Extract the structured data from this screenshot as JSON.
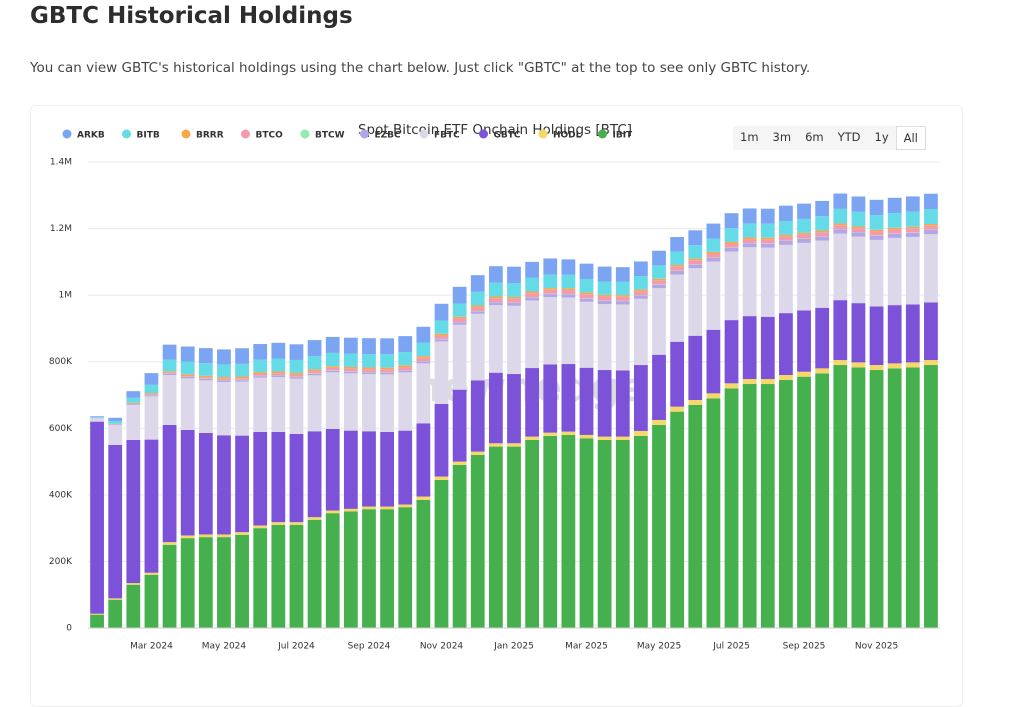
{
  "header": {
    "title": "GBTC Historical Holdings",
    "description": "You can view GBTC's historical holdings using the chart below. Just click \"GBTC\" at the top to see only GBTC history."
  },
  "range_buttons": [
    "1m",
    "3m",
    "6m",
    "YTD",
    "1y",
    "All"
  ],
  "chart_data": {
    "type": "bar",
    "stacked": true,
    "title": "Spot Bitcoin ETF Onchain Holdings [BTC]",
    "watermark": "newhedge",
    "categories": [
      null,
      null,
      null,
      "Mar 2024",
      null,
      null,
      null,
      "May 2024",
      null,
      null,
      null,
      "Jul 2024",
      null,
      null,
      null,
      "Sep 2024",
      null,
      null,
      null,
      "Nov 2024",
      null,
      null,
      null,
      "Jan 2025",
      null,
      null,
      null,
      "Mar 2025",
      null,
      null,
      null,
      "May 2025",
      null,
      null,
      null,
      "Jul 2025",
      null,
      null,
      null,
      "Sep 2025",
      null,
      null,
      null,
      "Nov 2025",
      null,
      null,
      null
    ],
    "series": [
      {
        "name": "ARKB",
        "color": "#7ba4f2",
        "values": [
          3000,
          10000,
          20000,
          35000,
          45000,
          45000,
          45000,
          45000,
          47000,
          47000,
          47000,
          47000,
          48000,
          48000,
          48000,
          48000,
          48000,
          48000,
          48000,
          50000,
          50000,
          50000,
          50000,
          50000,
          48000,
          48000,
          46000,
          46000,
          45000,
          44000,
          44000,
          44000,
          44000,
          45000,
          45000,
          45000,
          45000,
          45000,
          46000,
          46000,
          46000,
          46000,
          46000,
          46000,
          46000,
          46000,
          46000
        ]
      },
      {
        "name": "BITB",
        "color": "#66dbe8",
        "values": [
          2000,
          8000,
          15000,
          25000,
          35000,
          38000,
          38000,
          38000,
          38000,
          38000,
          39000,
          39000,
          40000,
          40000,
          40000,
          40000,
          40000,
          40000,
          40000,
          40000,
          40000,
          41000,
          41000,
          41000,
          41000,
          41000,
          41000,
          41000,
          40000,
          40000,
          40000,
          40000,
          40000,
          40000,
          40000,
          41000,
          42000,
          42000,
          42000,
          42000,
          43000,
          44000,
          44000,
          44000,
          44000,
          45000,
          45000
        ]
      },
      {
        "name": "BRRR",
        "color": "#f5a94a",
        "values": [
          300,
          1000,
          2000,
          3000,
          3500,
          4000,
          4500,
          5000,
          5000,
          5000,
          5000,
          5000,
          5000,
          5000,
          5000,
          5000,
          5000,
          5000,
          5000,
          5000,
          5000,
          5000,
          5000,
          5000,
          5000,
          5000,
          5000,
          5000,
          5000,
          5000,
          5000,
          5000,
          5000,
          5000,
          5000,
          5000,
          5000,
          5000,
          5000,
          5000,
          5000,
          5000,
          5000,
          5000,
          5000,
          5000,
          5000
        ]
      },
      {
        "name": "BTCO",
        "color": "#f59aae",
        "values": [
          200,
          800,
          1500,
          2500,
          3000,
          3500,
          4000,
          4500,
          5000,
          5500,
          6000,
          6500,
          7000,
          7500,
          8000,
          8500,
          9000,
          9500,
          10000,
          10500,
          11000,
          11500,
          12000,
          12000,
          12000,
          12000,
          12000,
          12000,
          12000,
          12000,
          12000,
          12000,
          12000,
          12000,
          12000,
          12000,
          12000,
          12000,
          12000,
          12000,
          12000,
          12000,
          12000,
          12000,
          12000,
          12000,
          12000
        ]
      },
      {
        "name": "BTCW",
        "color": "#95eab0",
        "values": [
          100,
          300,
          500,
          700,
          800,
          900,
          1000,
          1000,
          1000,
          1000,
          1000,
          1000,
          1000,
          1000,
          1000,
          1000,
          1000,
          1000,
          1000,
          1000,
          1000,
          1000,
          1000,
          1000,
          1000,
          1000,
          1000,
          1000,
          1000,
          1000,
          1000,
          1000,
          1000,
          1000,
          1000,
          1000,
          1000,
          1000,
          1000,
          1000,
          1000,
          1000,
          1000,
          1000,
          1000,
          1000,
          1000
        ]
      },
      {
        "name": "EZBC",
        "color": "#b3a6e6",
        "values": [
          500,
          1500,
          2500,
          3500,
          4000,
          4200,
          4300,
          4400,
          4500,
          4600,
          4700,
          4800,
          4900,
          5000,
          5100,
          5200,
          5300,
          5500,
          6000,
          6500,
          7000,
          7500,
          8000,
          8500,
          9000,
          9200,
          9400,
          9600,
          9800,
          10000,
          10200,
          10400,
          10600,
          10800,
          11000,
          11200,
          11400,
          11600,
          11800,
          12000,
          12100,
          12200,
          12300,
          12400,
          12500,
          12600,
          12700
        ]
      },
      {
        "name": "FBTC",
        "color": "#dcd8ea",
        "values": [
          10000,
          60000,
          105000,
          130000,
          150000,
          155000,
          158000,
          160000,
          162000,
          163000,
          165000,
          166000,
          168000,
          170000,
          172000,
          172000,
          173000,
          175000,
          180000,
          188000,
          195000,
          200000,
          203000,
          205000,
          203000,
          202000,
          200000,
          198000,
          198000,
          198000,
          199000,
          200000,
          202000,
          203000,
          205000,
          206000,
          207000,
          208000,
          205000,
          203000,
          202000,
          200000,
          200000,
          200000,
          202000,
          203000,
          205000
        ]
      },
      {
        "name": "GBTC",
        "color": "#7c52d8",
        "values": [
          577000,
          461000,
          430000,
          400000,
          352000,
          317000,
          305000,
          298000,
          290000,
          281000,
          271000,
          265000,
          258000,
          245000,
          235000,
          226000,
          224000,
          222000,
          220000,
          218000,
          216000,
          214000,
          212000,
          208000,
          206000,
          205000,
          203000,
          202000,
          200000,
          199000,
          198000,
          196000,
          195000,
          193000,
          191000,
          190000,
          189000,
          187000,
          186000,
          184000,
          182000,
          180000,
          178000,
          176000,
          175000,
          174000,
          173000
        ]
      },
      {
        "name": "HODL",
        "color": "#f6d86a",
        "values": [
          3000,
          4000,
          5000,
          6000,
          8000,
          8000,
          8000,
          8000,
          8000,
          8000,
          8000,
          8000,
          8000,
          8000,
          8000,
          8000,
          8000,
          8000,
          10000,
          10000,
          10000,
          10000,
          10000,
          10000,
          10000,
          10000,
          10000,
          10000,
          10000,
          10000,
          15000,
          15000,
          15000,
          15000,
          15000,
          15000,
          15000,
          15000,
          15000,
          15000,
          15000,
          15000,
          15000,
          15000,
          15000,
          15000,
          15000
        ]
      },
      {
        "name": "IBIT",
        "color": "#45b04d",
        "values": [
          40000,
          85000,
          130000,
          160000,
          250000,
          270000,
          273000,
          273000,
          280000,
          300000,
          310000,
          310000,
          325000,
          345000,
          350000,
          357000,
          357000,
          363000,
          385000,
          445000,
          490000,
          520000,
          545000,
          545000,
          565000,
          577000,
          580000,
          570000,
          565000,
          565000,
          577000,
          610000,
          650000,
          670000,
          690000,
          720000,
          733000,
          733000,
          745000,
          755000,
          765000,
          790000,
          783000,
          775000,
          780000,
          783000,
          790000
        ]
      }
    ],
    "ylim": [
      0,
      1400000
    ],
    "yticks": [
      0,
      {
        "value": 200000,
        "label": "200K"
      },
      {
        "value": 400000,
        "label": "400K"
      },
      {
        "value": 600000,
        "label": "600K"
      },
      {
        "value": 800000,
        "label": "800K"
      },
      {
        "value": 1000000,
        "label": "1M"
      },
      {
        "value": 1200000,
        "label": "1.2M"
      },
      {
        "value": 1400000,
        "label": "1.4M"
      }
    ],
    "grid": true,
    "legend": "top-left"
  }
}
